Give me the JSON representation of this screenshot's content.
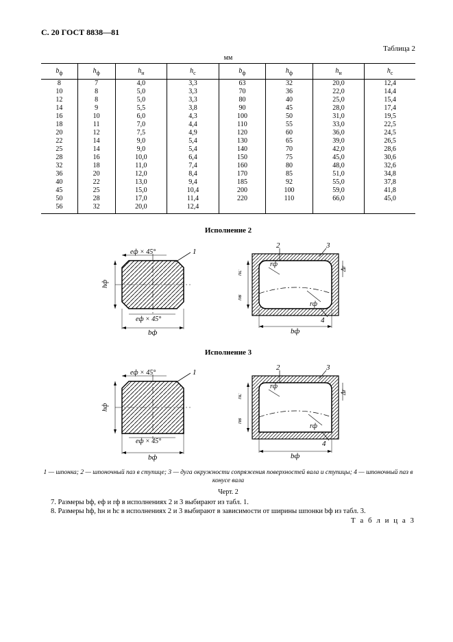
{
  "header": "С. 20 ГОСТ 8838—81",
  "table2_label": "Таблица 2",
  "table3_label": "Т а б л и ц а  3",
  "unit": "мм",
  "columns": [
    "b",
    "h",
    "h",
    "h",
    "b",
    "h",
    "h",
    "h"
  ],
  "col_sub": [
    "ф",
    "ф",
    "н",
    "с",
    "ф",
    "ф",
    "н",
    "с"
  ],
  "rows": [
    [
      "8",
      "7",
      "4,0",
      "3,3",
      "63",
      "32",
      "20,0",
      "12,4"
    ],
    [
      "10",
      "8",
      "5,0",
      "3,3",
      "70",
      "36",
      "22,0",
      "14,4"
    ],
    [
      "12",
      "8",
      "5,0",
      "3,3",
      "80",
      "40",
      "25,0",
      "15,4"
    ],
    [
      "14",
      "9",
      "5,5",
      "3,8",
      "90",
      "45",
      "28,0",
      "17,4"
    ],
    [
      "16",
      "10",
      "6,0",
      "4,3",
      "100",
      "50",
      "31,0",
      "19,5"
    ],
    [
      "18",
      "11",
      "7,0",
      "4,4",
      "110",
      "55",
      "33,0",
      "22,5"
    ],
    [
      "20",
      "12",
      "7,5",
      "4,9",
      "120",
      "60",
      "36,0",
      "24,5"
    ],
    [
      "22",
      "14",
      "9,0",
      "5,4",
      "130",
      "65",
      "39,0",
      "26,5"
    ],
    [
      "25",
      "14",
      "9,0",
      "5,4",
      "140",
      "70",
      "42,0",
      "28,6"
    ],
    [
      "28",
      "16",
      "10,0",
      "6,4",
      "150",
      "75",
      "45,0",
      "30,6"
    ],
    [
      "32",
      "18",
      "11,0",
      "7,4",
      "160",
      "80",
      "48,0",
      "32,6"
    ],
    [
      "36",
      "20",
      "12,0",
      "8,4",
      "170",
      "85",
      "51,0",
      "34,8"
    ],
    [
      "40",
      "22",
      "13,0",
      "9,4",
      "185",
      "92",
      "55,0",
      "37,8"
    ],
    [
      "45",
      "25",
      "15,0",
      "10,4",
      "200",
      "100",
      "59,0",
      "41,8"
    ],
    [
      "50",
      "28",
      "17,0",
      "11,4",
      "220",
      "110",
      "66,0",
      "45,0"
    ],
    [
      "56",
      "32",
      "20,0",
      "12,4",
      "",
      "",
      "",
      ""
    ]
  ],
  "section2": "Исполнение 2",
  "section3": "Исполнение 3",
  "legend": "1 — шпонка; 2 — шпоночный паз в ступице; 3 — дуга окружности сопряжения поверхностей вала и ступицы; 4 — шпоночный паз в конусе вала",
  "fig_label": "Черт. 2",
  "note7": "7.  Размеры bф, eф и rф в исполнениях 2 и 3 выбирают из табл. 1.",
  "note8": "8.  Размеры hф, hн и hс в исполнениях 2 и 3 выбирают в зависимости от ширины шпонки bф из табл. 3.",
  "dim_labels": {
    "ef45": "eф × 45°",
    "hf": "hф",
    "bf": "bф",
    "hc": "hс",
    "hb": "hв",
    "rf": "rф",
    "dr": "Δr"
  }
}
